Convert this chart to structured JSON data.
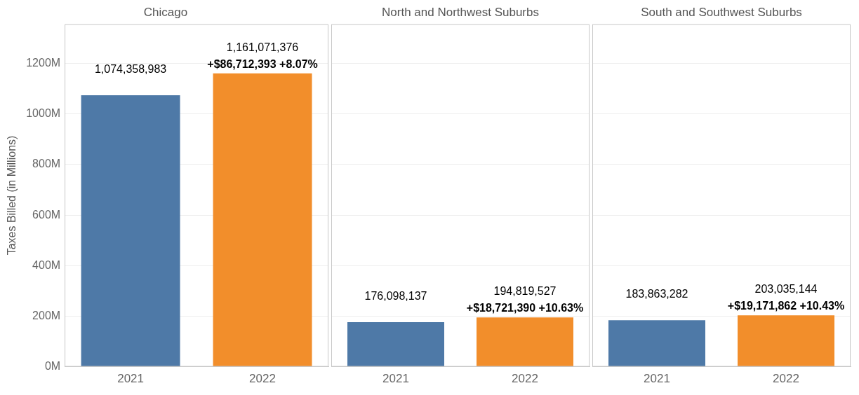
{
  "chart_data": [
    {
      "type": "bar",
      "title": "Chicago",
      "ylabel": "Taxes Billed (in Millions)",
      "categories": [
        "2021",
        "2022"
      ],
      "values": [
        1074358983,
        1161071376
      ],
      "colors": [
        "#4e79a7",
        "#f28e2b"
      ],
      "value_labels": [
        "1,074,358,983",
        "1,161,071,376"
      ],
      "annotations": [
        {
          "text": "+$86,712,393 +8.07%",
          "x": "2022",
          "y": 1161071376
        }
      ],
      "ylim": [
        0,
        1356000000
      ],
      "yticks": [
        {
          "value": 0,
          "label": "0M"
        },
        {
          "value": 200000000,
          "label": "200M"
        },
        {
          "value": 400000000,
          "label": "400M"
        },
        {
          "value": 600000000,
          "label": "600M"
        },
        {
          "value": 800000000,
          "label": "800M"
        },
        {
          "value": 1000000000,
          "label": "1000M"
        },
        {
          "value": 1200000000,
          "label": "1200M"
        }
      ],
      "grid": "y",
      "legend": false
    },
    {
      "type": "bar",
      "title": "North and Northwest Suburbs",
      "categories": [
        "2021",
        "2022"
      ],
      "values": [
        176098137,
        194819527
      ],
      "colors": [
        "#4e79a7",
        "#f28e2b"
      ],
      "value_labels": [
        "176,098,137",
        "194,819,527"
      ],
      "annotations": [
        {
          "text": "+$18,721,390 +10.63%",
          "x": "2022",
          "y": 194819527
        }
      ],
      "ylim": [
        0,
        1356000000
      ],
      "yticks": [
        0,
        200000000,
        400000000,
        600000000,
        800000000,
        1000000000,
        1200000000
      ],
      "tick_labels": "x",
      "grid": "y",
      "legend": false
    },
    {
      "type": "bar",
      "title": "South and Southwest Suburbs",
      "categories": [
        "2021",
        "2022"
      ],
      "values": [
        183863282,
        203035144
      ],
      "colors": [
        "#4e79a7",
        "#f28e2b"
      ],
      "value_labels": [
        "183,863,282",
        "203,035,144"
      ],
      "annotations": [
        {
          "text": "+$19,171,862 +10.43%",
          "x": "2022",
          "y": 203035144
        }
      ],
      "ylim": [
        0,
        1356000000
      ],
      "yticks": [
        0,
        200000000,
        400000000,
        600000000,
        800000000,
        1000000000,
        1200000000
      ],
      "tick_labels": "x",
      "grid": "y",
      "legend": false
    }
  ]
}
